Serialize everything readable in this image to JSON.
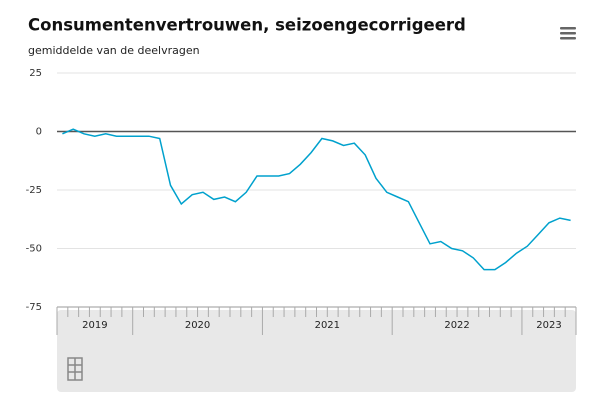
{
  "chart_data": {
    "type": "line",
    "title": "Consumentenvertrouwen, seizoengecorrigeerd",
    "subtitle": "gemiddelde van de deelvragen",
    "x": [
      "2019",
      "2019",
      "2019",
      "2019",
      "2019",
      "2019",
      "2019",
      "2020",
      "2020",
      "2020",
      "2020",
      "2020",
      "2020",
      "2020",
      "2020",
      "2020",
      "2020",
      "2020",
      "2020",
      "2021",
      "2021",
      "2021",
      "2021",
      "2021",
      "2021",
      "2021",
      "2021",
      "2021",
      "2021",
      "2021",
      "2021",
      "2022",
      "2022",
      "2022",
      "2022",
      "2022",
      "2022",
      "2022",
      "2022",
      "2022",
      "2022",
      "2022",
      "2022",
      "2023",
      "2023",
      "2023",
      "2023",
      "2023"
    ],
    "series": [
      {
        "name": "Consumentenvertrouwen",
        "color": "#00a1cd",
        "values": [
          -1,
          1,
          -1,
          -2,
          -1,
          -2,
          -2,
          -2,
          -2,
          -3,
          -23,
          -31,
          -27,
          -26,
          -29,
          -28,
          -30,
          -26,
          -19,
          -19,
          -19,
          -18,
          -14,
          -9,
          -3,
          -4,
          -6,
          -5,
          -10,
          -20,
          -26,
          -28,
          -30,
          -39,
          -48,
          -47,
          -50,
          -51,
          -54,
          -59,
          -59,
          -56,
          -52,
          -49,
          -44,
          -39,
          -37,
          -38
        ]
      }
    ],
    "ylim": [
      -75,
      25
    ],
    "yticks": [
      -75,
      -50,
      -25,
      0,
      25
    ],
    "grid": true
  }
}
